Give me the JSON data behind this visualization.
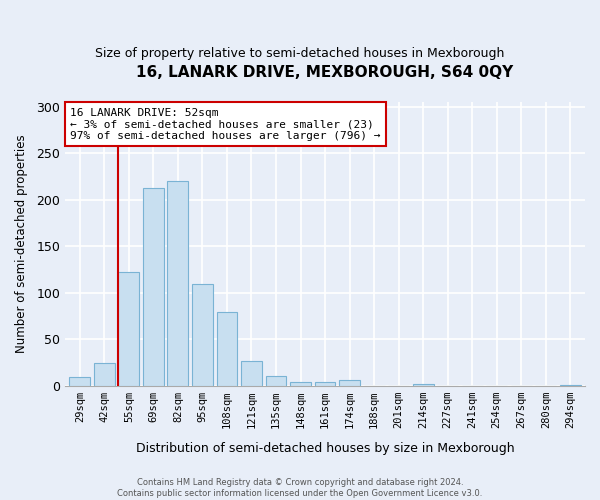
{
  "title": "16, LANARK DRIVE, MEXBOROUGH, S64 0QY",
  "subtitle": "Size of property relative to semi-detached houses in Mexborough",
  "xlabel": "Distribution of semi-detached houses by size in Mexborough",
  "ylabel": "Number of semi-detached properties",
  "bar_labels": [
    "29sqm",
    "42sqm",
    "55sqm",
    "69sqm",
    "82sqm",
    "95sqm",
    "108sqm",
    "121sqm",
    "135sqm",
    "148sqm",
    "161sqm",
    "174sqm",
    "188sqm",
    "201sqm",
    "214sqm",
    "227sqm",
    "241sqm",
    "254sqm",
    "267sqm",
    "280sqm",
    "294sqm"
  ],
  "bar_heights": [
    9,
    24,
    122,
    213,
    220,
    109,
    79,
    27,
    11,
    4,
    4,
    6,
    0,
    0,
    2,
    0,
    0,
    0,
    0,
    0,
    1
  ],
  "bar_color": "#c8dff0",
  "bar_edge_color": "#7ab3d4",
  "vline_color": "#cc0000",
  "annotation_title": "16 LANARK DRIVE: 52sqm",
  "annotation_line1": "← 3% of semi-detached houses are smaller (23)",
  "annotation_line2": "97% of semi-detached houses are larger (796) →",
  "annotation_box_color": "white",
  "annotation_box_edge": "#cc0000",
  "ylim": [
    0,
    305
  ],
  "yticks": [
    0,
    50,
    100,
    150,
    200,
    250,
    300
  ],
  "footer1": "Contains HM Land Registry data © Crown copyright and database right 2024.",
  "footer2": "Contains public sector information licensed under the Open Government Licence v3.0.",
  "background_color": "#e8eef8",
  "grid_color": "#ffffff",
  "fig_width": 6.0,
  "fig_height": 5.0,
  "dpi": 100
}
